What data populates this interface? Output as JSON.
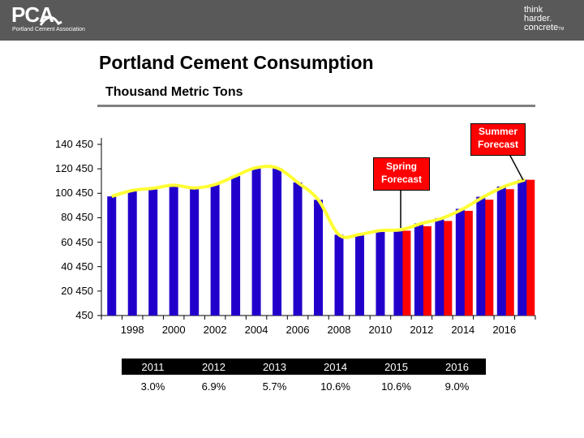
{
  "logo": {
    "name": "PCA",
    "tagline": "Portland Cement Association"
  },
  "brand_slogan": [
    "think",
    "harder.",
    "concrete"
  ],
  "brand_mark": "TM",
  "title": "Portland Cement Consumption",
  "subtitle": "Thousand Metric Tons",
  "callouts": {
    "spring": [
      "Spring",
      "Forecast"
    ],
    "summer": [
      "Summer",
      "Forecast"
    ]
  },
  "colors": {
    "actual": "#2200cc",
    "forecast": "#ff0000",
    "trend": "#ffff33",
    "header": "#595959"
  },
  "chart_data": {
    "type": "bar",
    "x": [
      1997,
      1998,
      1999,
      2000,
      2001,
      2002,
      2003,
      2004,
      2005,
      2006,
      2007,
      2008,
      2009,
      2010,
      2011,
      2012,
      2013,
      2014,
      2015,
      2016,
      2017
    ],
    "series": [
      {
        "values": [
          97900,
          102800,
          104500,
          107000,
          104800,
          107600,
          114700,
          121400,
          121200,
          109300,
          95100,
          66500,
          66800,
          70000,
          70600,
          75800,
          80100,
          87700,
          97600,
          106000,
          111500
        ]
      },
      {
        "values": [
          null,
          null,
          null,
          null,
          null,
          null,
          null,
          null,
          null,
          null,
          null,
          null,
          null,
          null,
          69800,
          73500,
          77800,
          86100,
          95200,
          103800,
          111500
        ]
      }
    ],
    "forecast_from": 2011,
    "ylim": [
      450,
      140450
    ],
    "yticks": [
      "140 450",
      "120 450",
      "100 450",
      "80 450",
      "60 450",
      "40 450",
      "20 450",
      "450"
    ],
    "yticks_values": [
      140450,
      120450,
      100450,
      80450,
      60450,
      40450,
      20450,
      450
    ],
    "xticks": [
      "1998",
      "2000",
      "2002",
      "2004",
      "2006",
      "2008",
      "2010",
      "2012",
      "2014",
      "2016"
    ],
    "grid": false,
    "trend_line": true
  },
  "growth_table": {
    "years": [
      "2011",
      "2012",
      "2013",
      "2014",
      "2015",
      "2016"
    ],
    "rates": [
      "3.0%",
      "6.9%",
      "5.7%",
      "10.6%",
      "10.6%",
      "9.0%"
    ]
  }
}
